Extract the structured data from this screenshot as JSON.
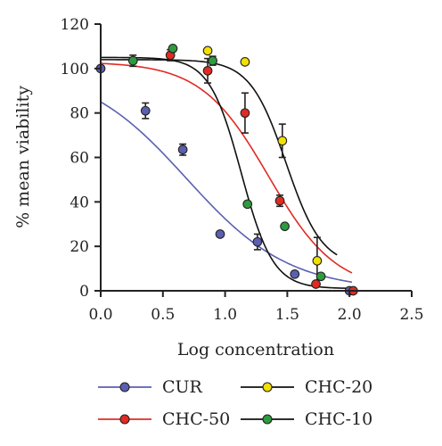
{
  "chart_data": {
    "type": "scatter",
    "title": "",
    "xlabel": "Log concentration",
    "ylabel": "% mean viability",
    "xlim": [
      0,
      2.5
    ],
    "ylim": [
      0,
      120
    ],
    "xticks": [
      "0.0",
      "0.5",
      "1.0",
      "1.5",
      "2.0",
      "2.5"
    ],
    "yticks": [
      "0",
      "20",
      "40",
      "60",
      "80",
      "100",
      "120"
    ],
    "legend_position": "bottom",
    "series": [
      {
        "name": "CUR",
        "color": "#5b5fb0",
        "points": [
          {
            "x": 0.0,
            "y": 100.0,
            "err": 0
          },
          {
            "x": 0.36,
            "y": 81.0,
            "err": 3.5
          },
          {
            "x": 0.66,
            "y": 63.5,
            "err": 2.5
          },
          {
            "x": 0.96,
            "y": 25.5,
            "err": 0
          },
          {
            "x": 1.26,
            "y": 22.0,
            "err": 3.5
          },
          {
            "x": 1.56,
            "y": 7.5,
            "err": 0
          },
          {
            "x": 2.0,
            "y": 0.0,
            "err": 0
          }
        ],
        "fit": {
          "top": 101,
          "bottom": 0,
          "logEC50": 0.69,
          "hill": 1.05,
          "x_range": [
            0.0,
            2.02
          ]
        }
      },
      {
        "name": "CHC-50",
        "color": "#e02b22",
        "points": [
          {
            "x": 0.56,
            "y": 106.0,
            "err": 2.5
          },
          {
            "x": 0.86,
            "y": 99.0,
            "err": 5.5
          },
          {
            "x": 1.16,
            "y": 80.0,
            "err": 9.0
          },
          {
            "x": 1.44,
            "y": 40.5,
            "err": 2.5
          },
          {
            "x": 1.73,
            "y": 3.0,
            "err": 0
          },
          {
            "x": 2.03,
            "y": 0.0,
            "err": 0
          }
        ],
        "fit": {
          "top": 103,
          "bottom": 0,
          "logEC50": 1.35,
          "hill": 1.6,
          "x_range": [
            0.0,
            2.02
          ]
        }
      },
      {
        "name": "CHC-20",
        "color": "#f2e000",
        "points": [
          {
            "x": 0.86,
            "y": 108.0,
            "err": 0
          },
          {
            "x": 1.16,
            "y": 103.0,
            "err": 0
          },
          {
            "x": 1.46,
            "y": 67.5,
            "err": 7.5
          },
          {
            "x": 1.74,
            "y": 13.5,
            "err": 10.5
          }
        ],
        "fit": {
          "top": 104,
          "bottom": 11,
          "logEC50": 1.49,
          "hill": 3.0,
          "x_range": [
            0.0,
            1.9
          ]
        }
      },
      {
        "name": "CHC-10",
        "color": "#2f9a3e",
        "points": [
          {
            "x": 0.26,
            "y": 103.5,
            "err": 2.5
          },
          {
            "x": 0.58,
            "y": 109.0,
            "err": 0
          },
          {
            "x": 0.9,
            "y": 103.5,
            "err": 2.0
          },
          {
            "x": 1.18,
            "y": 39.0,
            "err": 0
          },
          {
            "x": 1.48,
            "y": 29.0,
            "err": 0
          },
          {
            "x": 1.77,
            "y": 6.5,
            "err": 0
          }
        ],
        "fit": {
          "top": 105,
          "bottom": 1,
          "logEC50": 1.13,
          "hill": 3.4,
          "x_range": [
            0.0,
            2.02
          ]
        }
      }
    ]
  }
}
